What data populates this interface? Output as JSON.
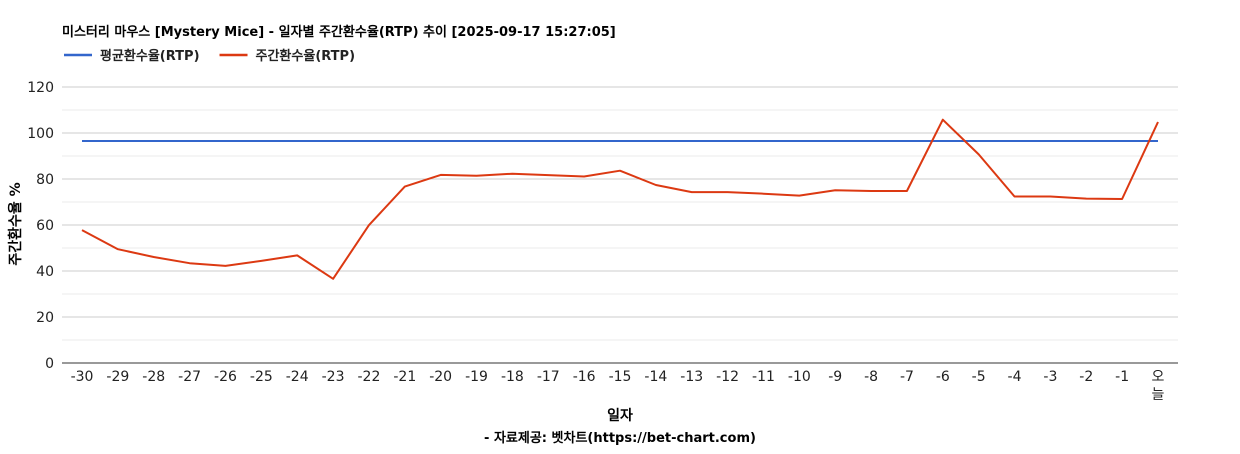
{
  "chart_data": {
    "type": "line",
    "title": "미스터리 마우스 [Mystery Mice] - 일자별 주간환수율(RTP) 추이 [2025-09-17 15:27:05]",
    "xlabel": "일자",
    "ylabel": "주간환수율 %",
    "source": "- 자료제공: 벳차트(https://bet-chart.com)",
    "categories": [
      "-30",
      "-29",
      "-28",
      "-27",
      "-26",
      "-25",
      "-24",
      "-23",
      "-22",
      "-21",
      "-20",
      "-19",
      "-18",
      "-17",
      "-16",
      "-15",
      "-14",
      "-13",
      "-12",
      "-11",
      "-10",
      "-9",
      "-8",
      "-7",
      "-6",
      "-5",
      "-4",
      "-3",
      "-2",
      "-1",
      "오늘"
    ],
    "ylim": [
      0,
      120
    ],
    "yticks": [
      0,
      20,
      40,
      60,
      80,
      100,
      120
    ],
    "grid": true,
    "legend_position": "top-left",
    "series": [
      {
        "name": "평균환수율(RTP)",
        "color": "#3366cc",
        "values": [
          96.5,
          96.5,
          96.5,
          96.5,
          96.5,
          96.5,
          96.5,
          96.5,
          96.5,
          96.5,
          96.5,
          96.5,
          96.5,
          96.5,
          96.5,
          96.5,
          96.5,
          96.5,
          96.5,
          96.5,
          96.5,
          96.5,
          96.5,
          96.5,
          96.5,
          96.5,
          96.5,
          96.5,
          96.5,
          96.5,
          96.5
        ]
      },
      {
        "name": "주간환수율(RTP)",
        "color": "#dc3912",
        "values": [
          57.8,
          49.5,
          46.1,
          43.4,
          42.2,
          44.4,
          46.8,
          36.6,
          59.9,
          76.7,
          81.8,
          81.4,
          82.3,
          81.7,
          81.1,
          83.6,
          77.4,
          74.3,
          74.3,
          73.6,
          72.8,
          75.1,
          74.8,
          74.8,
          105.8,
          90.7,
          72.4,
          72.4,
          71.5,
          71.3,
          104.8
        ]
      }
    ]
  }
}
